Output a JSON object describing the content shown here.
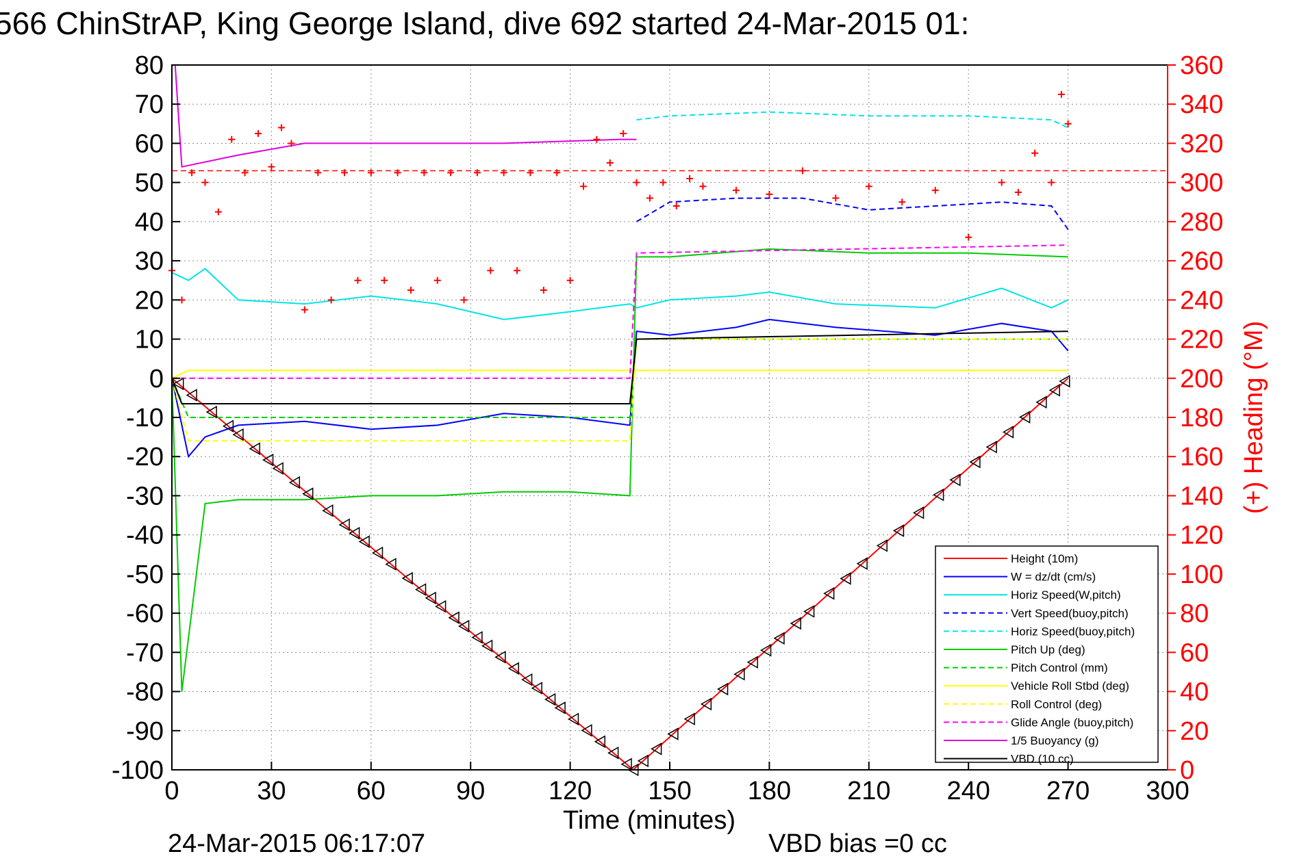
{
  "title": "566 ChinStrAP, King George Island, dive 692 started 24-Mar-2015 01:",
  "footer_date": "24-Mar-2015 06:17:07",
  "footer_note": "VBD bias =0 cc",
  "colors": {
    "left_axis": "#000000",
    "right_axis": "#ff0000",
    "grid": "#8c8c8c"
  },
  "chart_data": {
    "type": "line",
    "xlabel": "Time (minutes)",
    "ylabel": "",
    "y2label": "(+) Heading (°M)",
    "xlim": [
      0,
      300
    ],
    "ylim": [
      -100,
      80
    ],
    "y2lim": [
      0,
      360
    ],
    "xticks": [
      0,
      30,
      60,
      90,
      120,
      150,
      180,
      210,
      240,
      270,
      300
    ],
    "yticks": [
      80,
      70,
      60,
      50,
      40,
      30,
      20,
      10,
      0,
      -10,
      -20,
      -30,
      -40,
      -50,
      -60,
      -70,
      -80,
      -90,
      -100
    ],
    "y2ticks": [
      360,
      340,
      320,
      300,
      280,
      260,
      240,
      220,
      200,
      180,
      160,
      140,
      120,
      100,
      80,
      60,
      40,
      20,
      0
    ],
    "grid": true,
    "legend_position": "lower-right",
    "series": [
      {
        "name": "Height (10m)",
        "color": "#ff0000",
        "style": "solid",
        "x": [
          0,
          139,
          270
        ],
        "y": [
          0,
          -100,
          0
        ]
      },
      {
        "name": "W = dz/dt (cm/s)",
        "color": "#0000ff",
        "style": "solid",
        "x": [
          0,
          5,
          10,
          20,
          40,
          60,
          80,
          100,
          120,
          138,
          140,
          150,
          170,
          180,
          200,
          230,
          250,
          265,
          270
        ],
        "y": [
          0,
          -20,
          -15,
          -12,
          -11,
          -13,
          -12,
          -9,
          -10,
          -12,
          12,
          11,
          13,
          15,
          13,
          11,
          14,
          12,
          7
        ]
      },
      {
        "name": "Horiz Speed(W,pitch)",
        "color": "#00e5e5",
        "style": "solid",
        "x": [
          0,
          5,
          10,
          20,
          40,
          60,
          80,
          100,
          120,
          138,
          140,
          150,
          170,
          180,
          200,
          230,
          250,
          265,
          270
        ],
        "y": [
          27,
          25,
          28,
          20,
          19,
          21,
          19,
          15,
          17,
          19,
          18,
          20,
          21,
          22,
          19,
          18,
          23,
          18,
          20
        ]
      },
      {
        "name": "Vert Speed(buoy,pitch)",
        "color": "#0000ff",
        "style": "dashed",
        "x": [
          140,
          150,
          170,
          190,
          210,
          230,
          250,
          265,
          270
        ],
        "y": [
          40,
          45,
          46,
          46,
          43,
          44,
          45,
          44,
          38
        ]
      },
      {
        "name": "Horiz Speed(buoy,pitch)",
        "color": "#00e5e5",
        "style": "dashed",
        "x": [
          140,
          150,
          180,
          210,
          240,
          265,
          270
        ],
        "y": [
          66,
          67,
          68,
          67,
          67,
          66,
          64
        ]
      },
      {
        "name": "Pitch Up (deg)",
        "color": "#00cc00",
        "style": "solid",
        "x": [
          0,
          3,
          10,
          20,
          40,
          60,
          80,
          100,
          120,
          138,
          140,
          150,
          180,
          210,
          240,
          270
        ],
        "y": [
          0,
          -80,
          -32,
          -31,
          -31,
          -30,
          -30,
          -29,
          -29,
          -30,
          31,
          31,
          33,
          32,
          32,
          31
        ]
      },
      {
        "name": "Pitch Control (mm)",
        "color": "#00cc00",
        "style": "dashed",
        "x": [
          0,
          5,
          138,
          140,
          270
        ],
        "y": [
          0,
          -10,
          -10,
          10,
          10
        ]
      },
      {
        "name": "Vehicle Roll Stbd (deg)",
        "color": "#ffff00",
        "style": "solid",
        "x": [
          0,
          5,
          40,
          80,
          138,
          140,
          180,
          270
        ],
        "y": [
          0,
          2,
          2,
          2,
          2,
          2,
          2,
          2
        ]
      },
      {
        "name": "Roll Control (deg)",
        "color": "#ffff00",
        "style": "dashed",
        "x": [
          0,
          5,
          40,
          80,
          138,
          140,
          180,
          270
        ],
        "y": [
          0,
          -16,
          -16,
          -16,
          -16,
          10,
          10,
          10
        ]
      },
      {
        "name": "Glide Angle (buoy,pitch)",
        "color": "#ff00ff",
        "style": "dashed",
        "x": [
          0,
          138,
          140,
          270
        ],
        "y": [
          0,
          0,
          32,
          34
        ]
      },
      {
        "name": "1/5 Buoyancy (g)",
        "color": "#e000e0",
        "style": "solid",
        "x": [
          1,
          3,
          20,
          40,
          100,
          135,
          140
        ],
        "y": [
          80,
          54,
          57,
          60,
          60,
          61,
          61
        ]
      },
      {
        "name": "VBD (10 cc)",
        "color": "#000000",
        "style": "solid",
        "x": [
          0,
          3,
          138,
          140,
          270
        ],
        "y": [
          0,
          -6.5,
          -6.5,
          10,
          12
        ]
      }
    ],
    "heading": {
      "name": "Heading",
      "color": "#ff0000",
      "marker": "+",
      "axis": "right",
      "reference_line": 306,
      "x": [
        0,
        3,
        6,
        10,
        14,
        18,
        22,
        26,
        30,
        33,
        36,
        40,
        44,
        48,
        52,
        56,
        60,
        64,
        68,
        72,
        76,
        80,
        84,
        88,
        92,
        96,
        100,
        104,
        108,
        112,
        116,
        120,
        124,
        128,
        132,
        136,
        140,
        144,
        148,
        152,
        156,
        160,
        170,
        180,
        190,
        200,
        210,
        220,
        230,
        240,
        250,
        255,
        260,
        265,
        268,
        270
      ],
      "y": [
        255,
        240,
        305,
        300,
        285,
        322,
        305,
        325,
        308,
        328,
        320,
        235,
        305,
        240,
        305,
        250,
        305,
        250,
        305,
        245,
        305,
        250,
        305,
        240,
        305,
        255,
        305,
        255,
        305,
        245,
        305,
        250,
        298,
        322,
        310,
        325,
        300,
        292,
        300,
        288,
        302,
        298,
        296,
        294,
        306,
        292,
        298,
        290,
        296,
        272,
        300,
        295,
        315,
        300,
        345,
        330
      ]
    },
    "markers": {
      "name": "Height markers",
      "shape": "triangle",
      "color": "#000000",
      "x": [
        2,
        6,
        12,
        17,
        20,
        25,
        29,
        32,
        37,
        41,
        47,
        52,
        55,
        58,
        62,
        66,
        71,
        75,
        78,
        81,
        85,
        88,
        92,
        95,
        99,
        103,
        107,
        110,
        114,
        117,
        121,
        125,
        129,
        133,
        137,
        139,
        142,
        146,
        151,
        156,
        161,
        166,
        171,
        175,
        179,
        183,
        188,
        192,
        198,
        203,
        208,
        214,
        219,
        225,
        231,
        236,
        242,
        247,
        252,
        257,
        262,
        266,
        269
      ]
    }
  }
}
